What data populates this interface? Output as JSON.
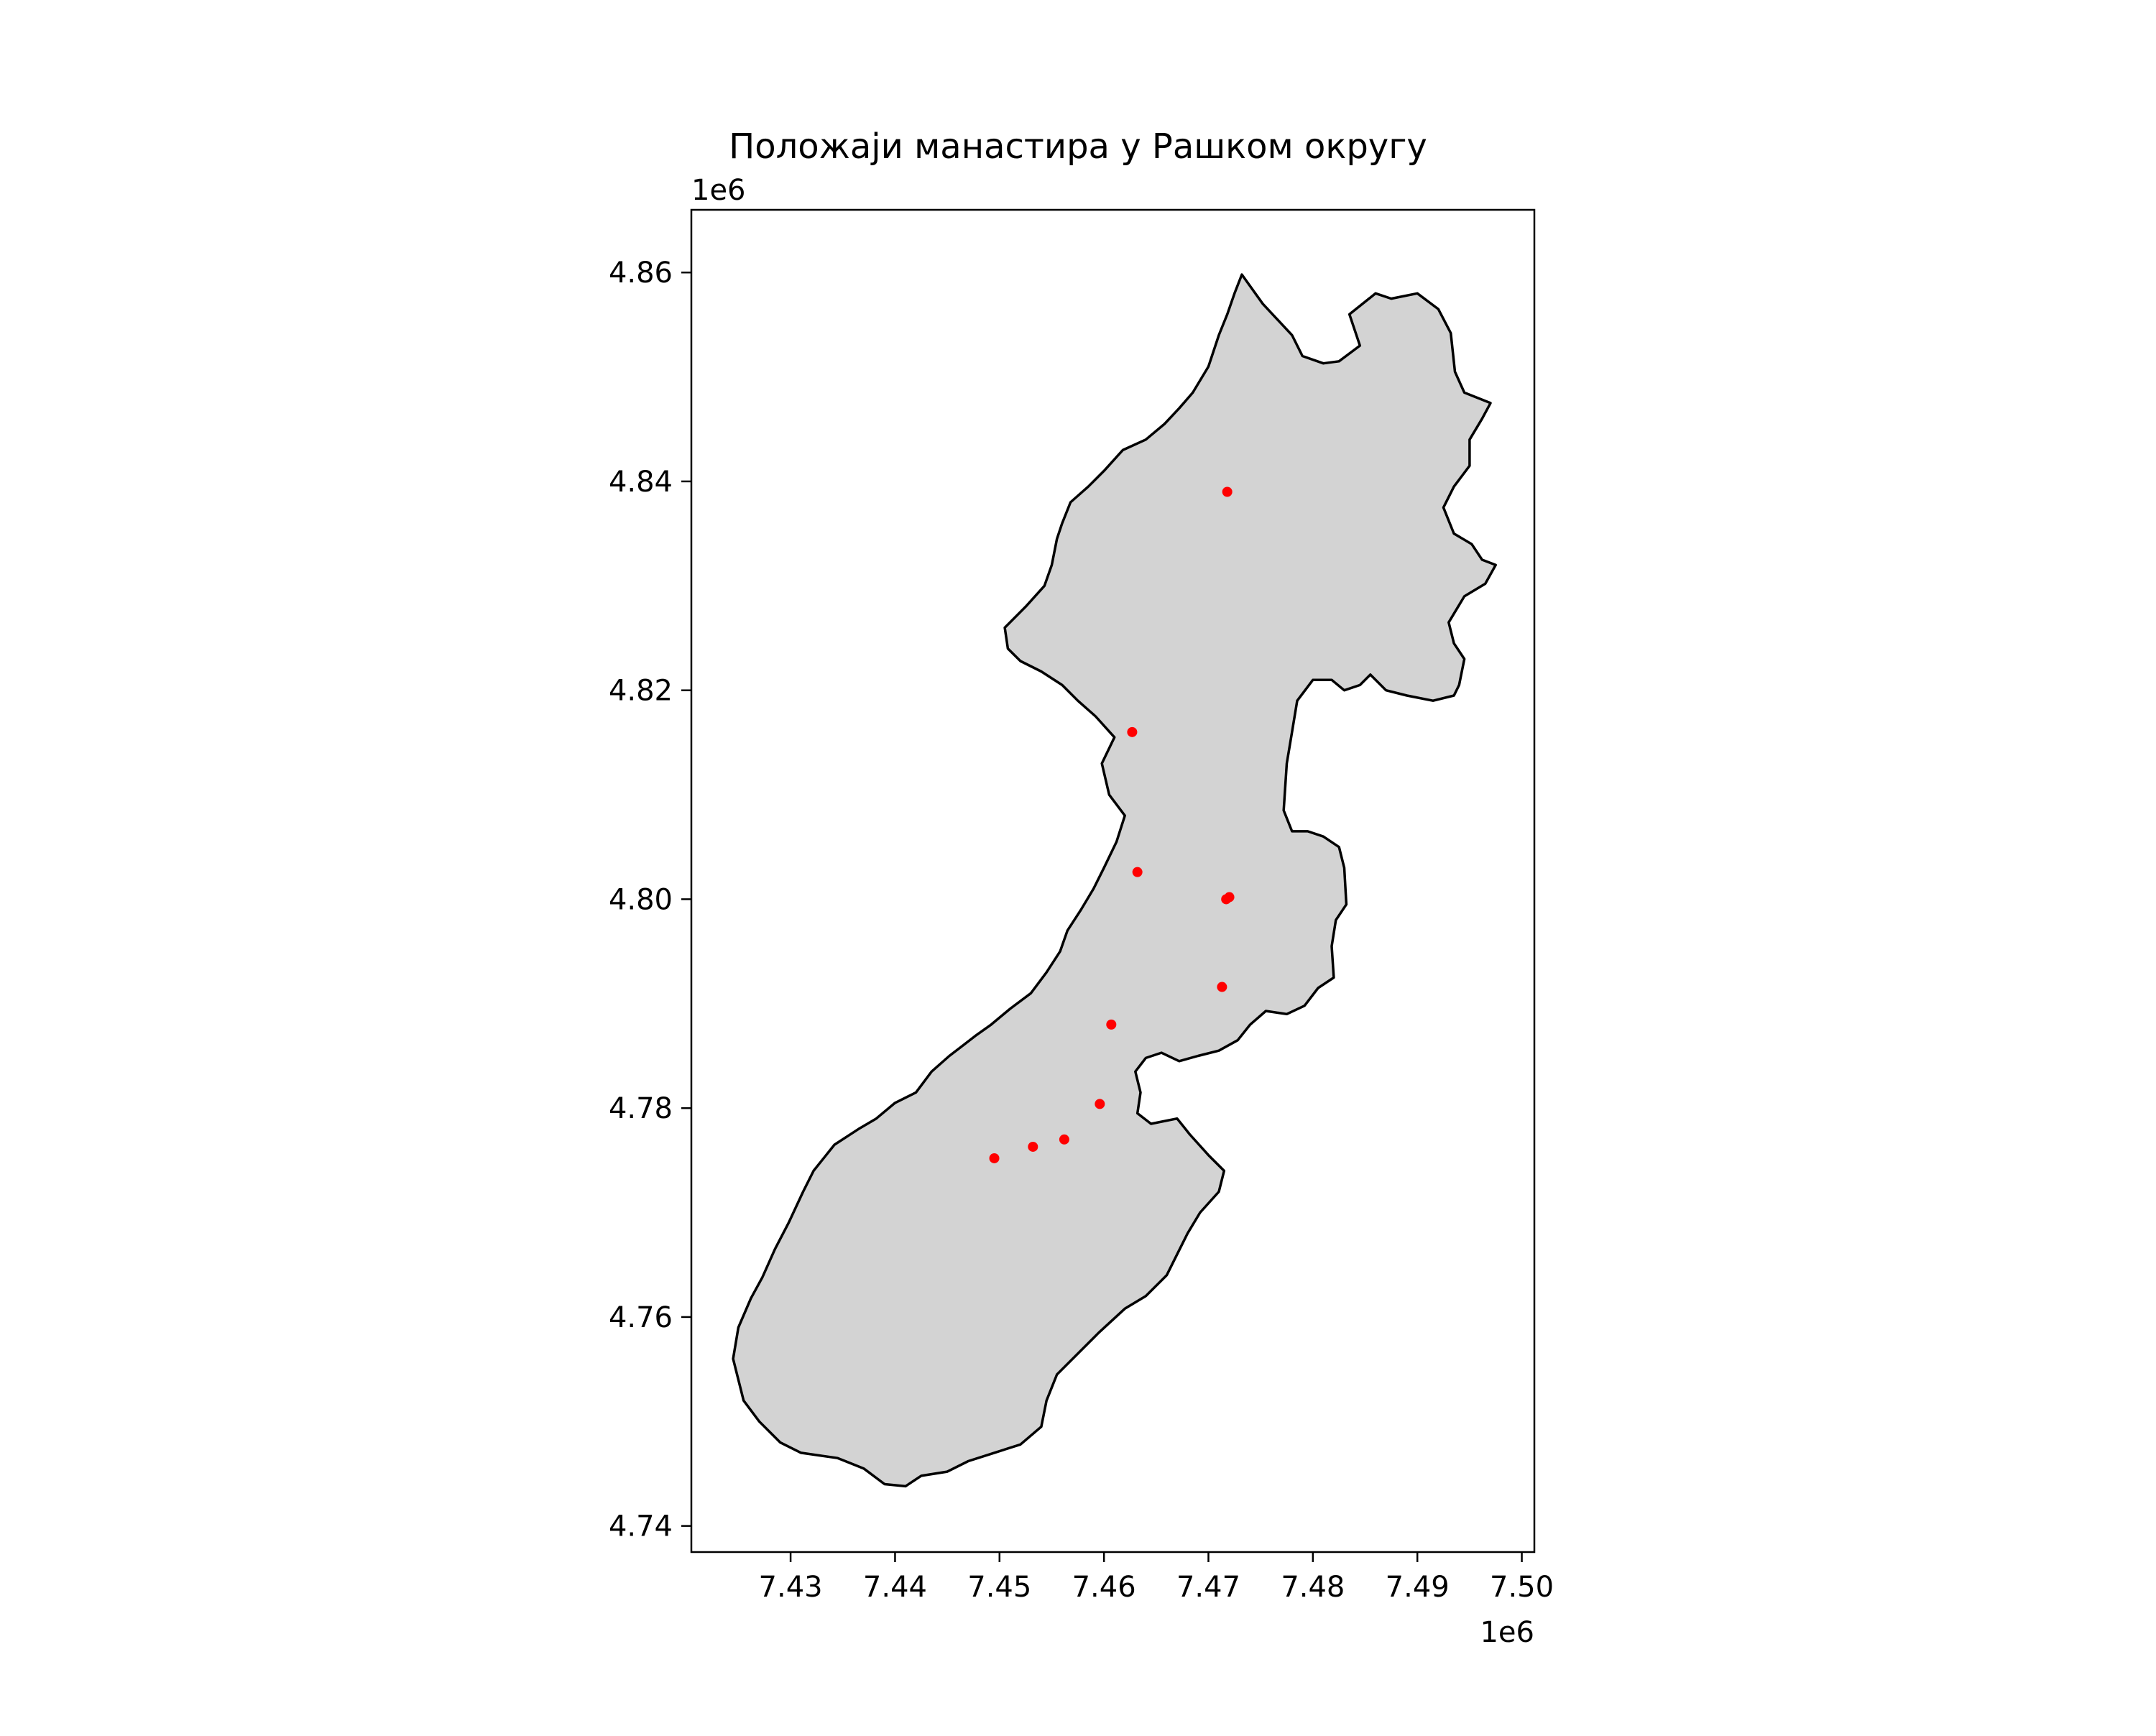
{
  "chart_data": {
    "type": "map",
    "title": "Положаји манастира у Рашком округу",
    "x_offset_label": "1e6",
    "y_offset_label": "1e6",
    "xlim": [
      7.4205,
      7.5012
    ],
    "ylim": [
      4.7375,
      4.866
    ],
    "x_ticks": [
      {
        "value": 7.43,
        "label": "7.43"
      },
      {
        "value": 7.44,
        "label": "7.44"
      },
      {
        "value": 7.45,
        "label": "7.45"
      },
      {
        "value": 7.46,
        "label": "7.46"
      },
      {
        "value": 7.47,
        "label": "7.47"
      },
      {
        "value": 7.48,
        "label": "7.48"
      },
      {
        "value": 7.49,
        "label": "7.49"
      },
      {
        "value": 7.5,
        "label": "7.50"
      }
    ],
    "y_ticks": [
      {
        "value": 4.74,
        "label": "4.74"
      },
      {
        "value": 4.76,
        "label": "4.76"
      },
      {
        "value": 4.78,
        "label": "4.78"
      },
      {
        "value": 4.8,
        "label": "4.80"
      },
      {
        "value": 4.82,
        "label": "4.82"
      },
      {
        "value": 4.84,
        "label": "4.84"
      },
      {
        "value": 4.86,
        "label": "4.86"
      }
    ],
    "region": {
      "fill": "#d3d3d3",
      "edge": "#000000",
      "boundary": [
        [
          7.4732,
          4.8598
        ],
        [
          7.4752,
          4.857
        ],
        [
          7.478,
          4.854
        ],
        [
          7.479,
          4.852
        ],
        [
          7.481,
          4.8513
        ],
        [
          7.4825,
          4.8515
        ],
        [
          7.4845,
          4.853
        ],
        [
          7.4835,
          4.856
        ],
        [
          7.486,
          4.858
        ],
        [
          7.4875,
          4.8575
        ],
        [
          7.49,
          4.858
        ],
        [
          7.492,
          4.8565
        ],
        [
          7.4932,
          4.8542
        ],
        [
          7.4936,
          4.8505
        ],
        [
          7.4945,
          4.8485
        ],
        [
          7.497,
          4.8475
        ],
        [
          7.4962,
          4.846
        ],
        [
          7.495,
          4.844
        ],
        [
          7.495,
          4.8415
        ],
        [
          7.4935,
          4.8395
        ],
        [
          7.4925,
          4.8375
        ],
        [
          7.4935,
          4.835
        ],
        [
          7.4952,
          4.834
        ],
        [
          7.4962,
          4.8325
        ],
        [
          7.4975,
          4.832
        ],
        [
          7.4965,
          4.8302
        ],
        [
          7.4945,
          4.829
        ],
        [
          7.493,
          4.8265
        ],
        [
          7.4935,
          4.8245
        ],
        [
          7.4945,
          4.823
        ],
        [
          7.494,
          4.8205
        ],
        [
          7.4935,
          4.8195
        ],
        [
          7.4915,
          4.819
        ],
        [
          7.489,
          4.8195
        ],
        [
          7.487,
          4.82
        ],
        [
          7.4855,
          4.8215
        ],
        [
          7.4845,
          4.8205
        ],
        [
          7.483,
          4.82
        ],
        [
          7.4818,
          4.821
        ],
        [
          7.48,
          4.821
        ],
        [
          7.4785,
          4.819
        ],
        [
          7.478,
          4.816
        ],
        [
          7.4775,
          4.813
        ],
        [
          7.4772,
          4.8085
        ],
        [
          7.478,
          4.8065
        ],
        [
          7.4795,
          4.8065
        ],
        [
          7.481,
          4.806
        ],
        [
          7.4825,
          4.805
        ],
        [
          7.483,
          4.803
        ],
        [
          7.4832,
          4.7995
        ],
        [
          7.4822,
          4.798
        ],
        [
          7.4818,
          4.7955
        ],
        [
          7.482,
          4.7925
        ],
        [
          7.4805,
          4.7915
        ],
        [
          7.4792,
          4.7898
        ],
        [
          7.4775,
          4.789
        ],
        [
          7.4755,
          4.7893
        ],
        [
          7.474,
          4.788
        ],
        [
          7.4728,
          4.7865
        ],
        [
          7.471,
          4.7855
        ],
        [
          7.469,
          4.785
        ],
        [
          7.4672,
          4.7845
        ],
        [
          7.4655,
          4.7853
        ],
        [
          7.464,
          4.7848
        ],
        [
          7.463,
          4.7835
        ],
        [
          7.4635,
          4.7815
        ],
        [
          7.4632,
          4.7795
        ],
        [
          7.4645,
          4.7785
        ],
        [
          7.467,
          4.779
        ],
        [
          7.4682,
          4.7775
        ],
        [
          7.47,
          4.7755
        ],
        [
          7.4715,
          4.774
        ],
        [
          7.471,
          4.772
        ],
        [
          7.4692,
          4.77
        ],
        [
          7.468,
          4.768
        ],
        [
          7.467,
          4.766
        ],
        [
          7.466,
          4.764
        ],
        [
          7.464,
          4.762
        ],
        [
          7.462,
          4.7608
        ],
        [
          7.4595,
          4.7585
        ],
        [
          7.458,
          4.757
        ],
        [
          7.4555,
          4.7545
        ],
        [
          7.4545,
          4.752
        ],
        [
          7.454,
          4.7495
        ],
        [
          7.452,
          4.7478
        ],
        [
          7.4495,
          4.747
        ],
        [
          7.447,
          4.7462
        ],
        [
          7.445,
          4.7452
        ],
        [
          7.4425,
          4.7448
        ],
        [
          7.441,
          4.7438
        ],
        [
          7.439,
          4.744
        ],
        [
          7.437,
          4.7455
        ],
        [
          7.4345,
          4.7465
        ],
        [
          7.431,
          4.747
        ],
        [
          7.429,
          4.748
        ],
        [
          7.427,
          4.75
        ],
        [
          7.4255,
          4.752
        ],
        [
          7.4245,
          4.756
        ],
        [
          7.425,
          4.759
        ],
        [
          7.4262,
          4.7618
        ],
        [
          7.4273,
          4.7638
        ],
        [
          7.4285,
          4.7665
        ],
        [
          7.4298,
          4.769
        ],
        [
          7.4312,
          4.772
        ],
        [
          7.4322,
          4.774
        ],
        [
          7.4342,
          4.7765
        ],
        [
          7.4365,
          4.778
        ],
        [
          7.4382,
          4.779
        ],
        [
          7.44,
          4.7805
        ],
        [
          7.442,
          4.7815
        ],
        [
          7.4435,
          4.7835
        ],
        [
          7.4452,
          4.785
        ],
        [
          7.4465,
          4.786
        ],
        [
          7.4478,
          4.787
        ],
        [
          7.4492,
          4.788
        ],
        [
          7.451,
          4.7895
        ],
        [
          7.453,
          4.791
        ],
        [
          7.4545,
          4.793
        ],
        [
          7.4558,
          4.795
        ],
        [
          7.4565,
          4.797
        ],
        [
          7.4578,
          4.799
        ],
        [
          7.459,
          4.801
        ],
        [
          7.46,
          4.803
        ],
        [
          7.4612,
          4.8055
        ],
        [
          7.462,
          4.808
        ],
        [
          7.4605,
          4.81
        ],
        [
          7.4598,
          4.813
        ],
        [
          7.461,
          4.8155
        ],
        [
          7.4592,
          4.8175
        ],
        [
          7.4575,
          4.819
        ],
        [
          7.456,
          4.8205
        ],
        [
          7.454,
          4.8218
        ],
        [
          7.452,
          4.8228
        ],
        [
          7.4508,
          4.824
        ],
        [
          7.4505,
          4.826
        ],
        [
          7.4525,
          4.828
        ],
        [
          7.4543,
          4.83
        ],
        [
          7.455,
          4.832
        ],
        [
          7.4555,
          4.8345
        ],
        [
          7.456,
          4.836
        ],
        [
          7.4568,
          4.838
        ],
        [
          7.4585,
          4.8395
        ],
        [
          7.46,
          4.841
        ],
        [
          7.4618,
          4.843
        ],
        [
          7.464,
          4.844
        ],
        [
          7.4658,
          4.8455
        ],
        [
          7.4672,
          4.847
        ],
        [
          7.4685,
          4.8485
        ],
        [
          7.47,
          4.851
        ],
        [
          7.471,
          4.854
        ],
        [
          7.4718,
          4.856
        ],
        [
          7.4725,
          4.858
        ]
      ]
    },
    "points": {
      "color": "#ff0000",
      "data": [
        {
          "x": 7.4718,
          "y": 4.839
        },
        {
          "x": 7.4627,
          "y": 4.816
        },
        {
          "x": 7.4632,
          "y": 4.8026
        },
        {
          "x": 7.4717,
          "y": 4.8
        },
        {
          "x": 7.472,
          "y": 4.8002
        },
        {
          "x": 7.4713,
          "y": 4.7916
        },
        {
          "x": 7.4607,
          "y": 4.788
        },
        {
          "x": 7.4596,
          "y": 4.7804
        },
        {
          "x": 7.4562,
          "y": 4.777
        },
        {
          "x": 7.4532,
          "y": 4.7763
        },
        {
          "x": 7.4495,
          "y": 4.7752
        }
      ]
    }
  }
}
